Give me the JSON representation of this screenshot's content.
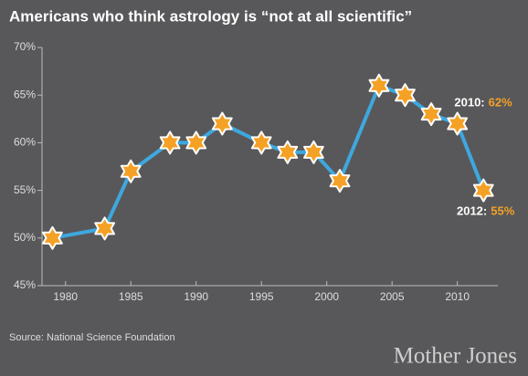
{
  "chart_data": {
    "type": "line",
    "title": "Americans who think astrology is “not at all scientific”",
    "source": "Source: National Science Foundation",
    "brand": "Mother Jones",
    "x": [
      1979,
      1983,
      1985,
      1988,
      1990,
      1992,
      1995,
      1997,
      1999,
      2001,
      2004,
      2006,
      2008,
      2010,
      2012
    ],
    "series": [
      {
        "name": "Not at all scientific",
        "color": "#3ea8de",
        "values": [
          50,
          51,
          57,
          60,
          60,
          62,
          60,
          59,
          59,
          56,
          66,
          65,
          63,
          62,
          55
        ],
        "value_labels": [
          null,
          null,
          null,
          null,
          null,
          null,
          null,
          null,
          null,
          null,
          null,
          null,
          null,
          "62%",
          "55%"
        ]
      }
    ],
    "annotations": [
      "2010:",
      "2012:"
    ],
    "marker_color": "#f4a125",
    "xlim": [
      1978.2,
      2013.1
    ],
    "xticks": [
      1980,
      1985,
      1990,
      1995,
      2000,
      2005,
      2010
    ],
    "ylim": [
      45,
      70
    ],
    "yticks": [
      {
        "value": 45,
        "label": "45%"
      },
      {
        "value": 50,
        "label": "50%"
      },
      {
        "value": 55,
        "label": "55%"
      },
      {
        "value": 60,
        "label": "60%"
      },
      {
        "value": 65,
        "label": "65%"
      },
      {
        "value": 70,
        "label": "70%"
      }
    ]
  }
}
